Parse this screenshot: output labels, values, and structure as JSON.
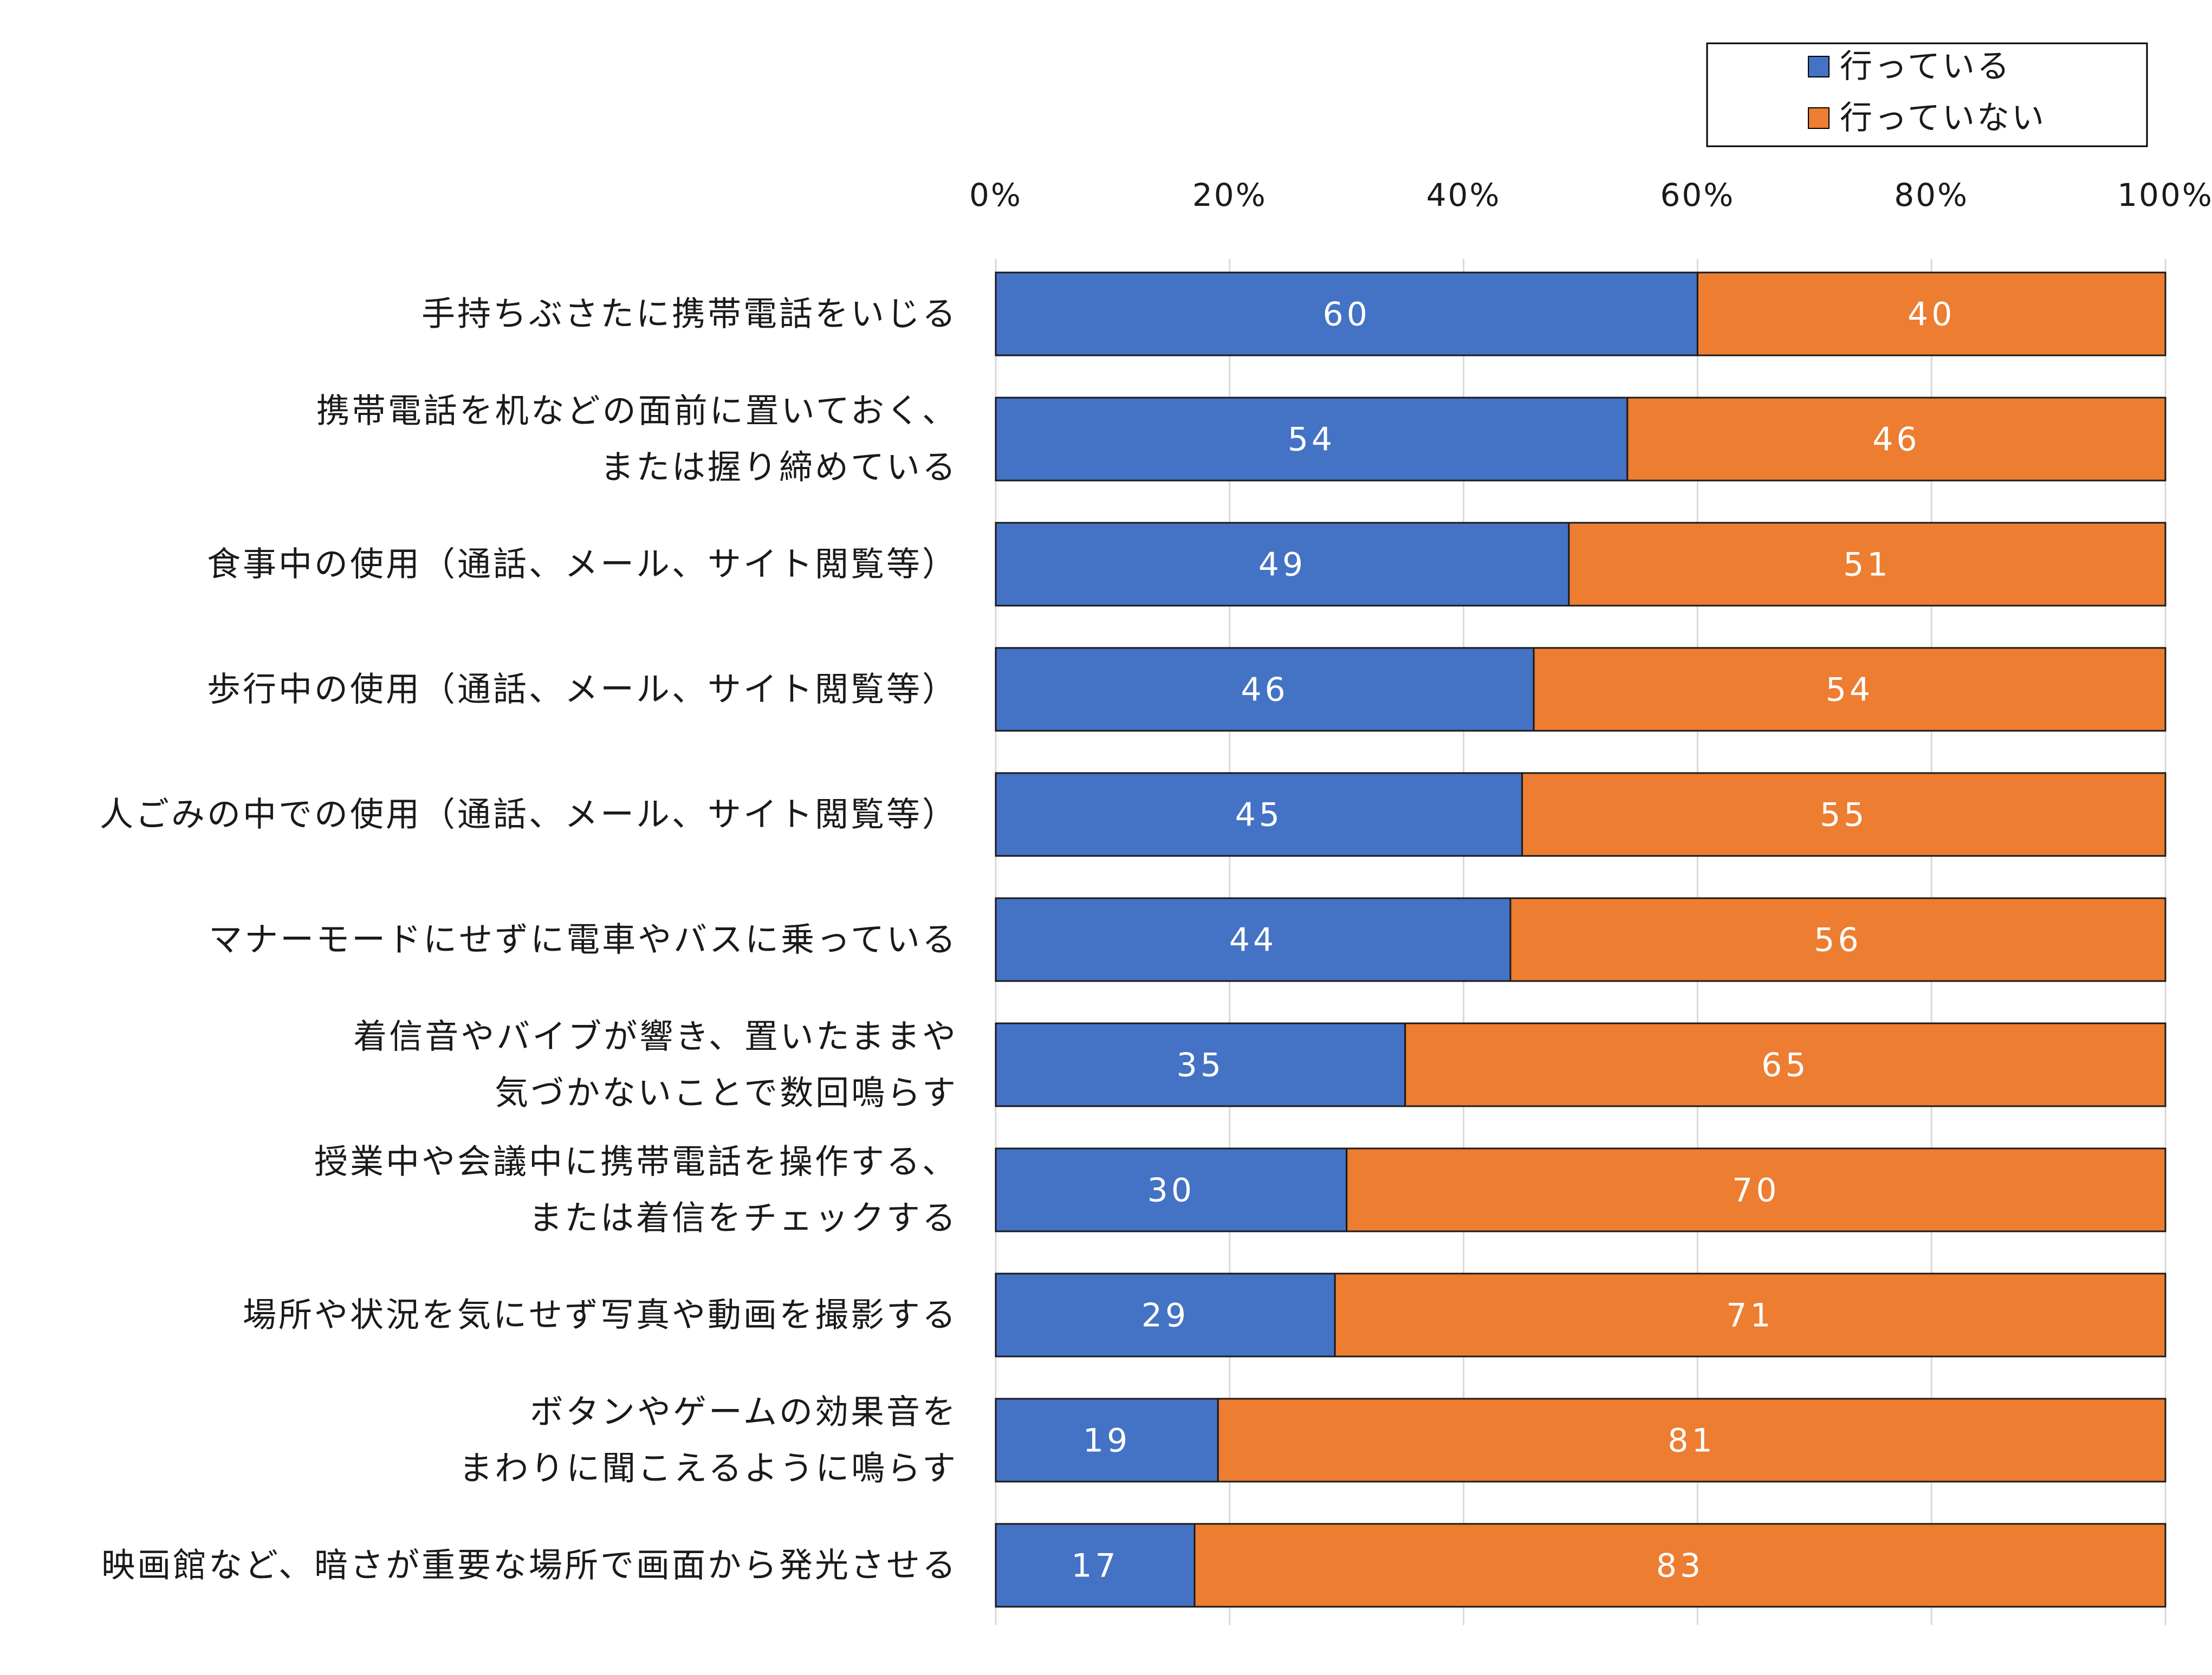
{
  "chart_data": {
    "type": "bar",
    "orientation": "horizontal",
    "stacked": "percent",
    "categories": [
      [
        "手持ちぶさたに携帯電話をいじる"
      ],
      [
        "携帯電話を机などの面前に置いておく、",
        "または握り締めている"
      ],
      [
        "食事中の使用（通話、メール、サイト閲覧等）"
      ],
      [
        "歩行中の使用（通話、メール、サイト閲覧等）"
      ],
      [
        "人ごみの中での使用（通話、メール、サイト閲覧等）"
      ],
      [
        "マナーモードにせずに電車やバスに乗っている"
      ],
      [
        "着信音やバイブが響き、置いたままや",
        "気づかないことで数回鳴らす"
      ],
      [
        "授業中や会議中に携帯電話を操作する、",
        "または着信をチェックする"
      ],
      [
        "場所や状況を気にせず写真や動画を撮影する"
      ],
      [
        "ボタンやゲームの効果音を",
        "まわりに聞こえるように鳴らす"
      ],
      [
        "映画館など、暗さが重要な場所で画面から発光させる"
      ]
    ],
    "series": [
      {
        "name": "行っている",
        "color": "#4472C4",
        "values": [
          60,
          54,
          49,
          46,
          45,
          44,
          35,
          30,
          29,
          19,
          17
        ]
      },
      {
        "name": "行っていない",
        "color": "#ED7D31",
        "values": [
          40,
          46,
          51,
          54,
          55,
          56,
          65,
          70,
          71,
          81,
          83
        ]
      }
    ],
    "x_ticks": [
      "0%",
      "20%",
      "40%",
      "60%",
      "80%",
      "100%"
    ],
    "xlim": [
      0,
      100
    ],
    "grid": true,
    "legend": "top-right",
    "data_labels": true
  }
}
